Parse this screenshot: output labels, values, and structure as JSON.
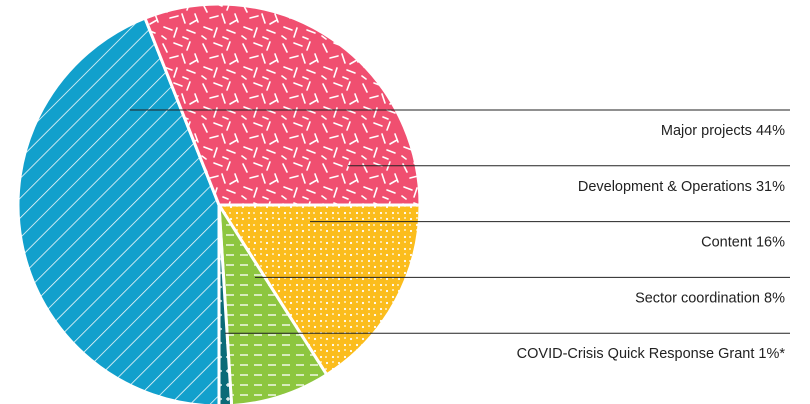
{
  "chart_data": {
    "type": "pie",
    "categories": [
      "Major projects",
      "Development & Operations",
      "Content",
      "Sector coordination",
      "COVID-Crisis Quick Response Grant"
    ],
    "values": [
      44,
      31,
      16,
      8,
      1
    ],
    "value_labels": [
      "44%",
      "31%",
      "16%",
      "8%",
      "1%*"
    ],
    "colors": [
      "#12a0cc",
      "#f04f70",
      "#fbbd1d",
      "#8dc63f",
      "#0b6b78"
    ]
  }
}
